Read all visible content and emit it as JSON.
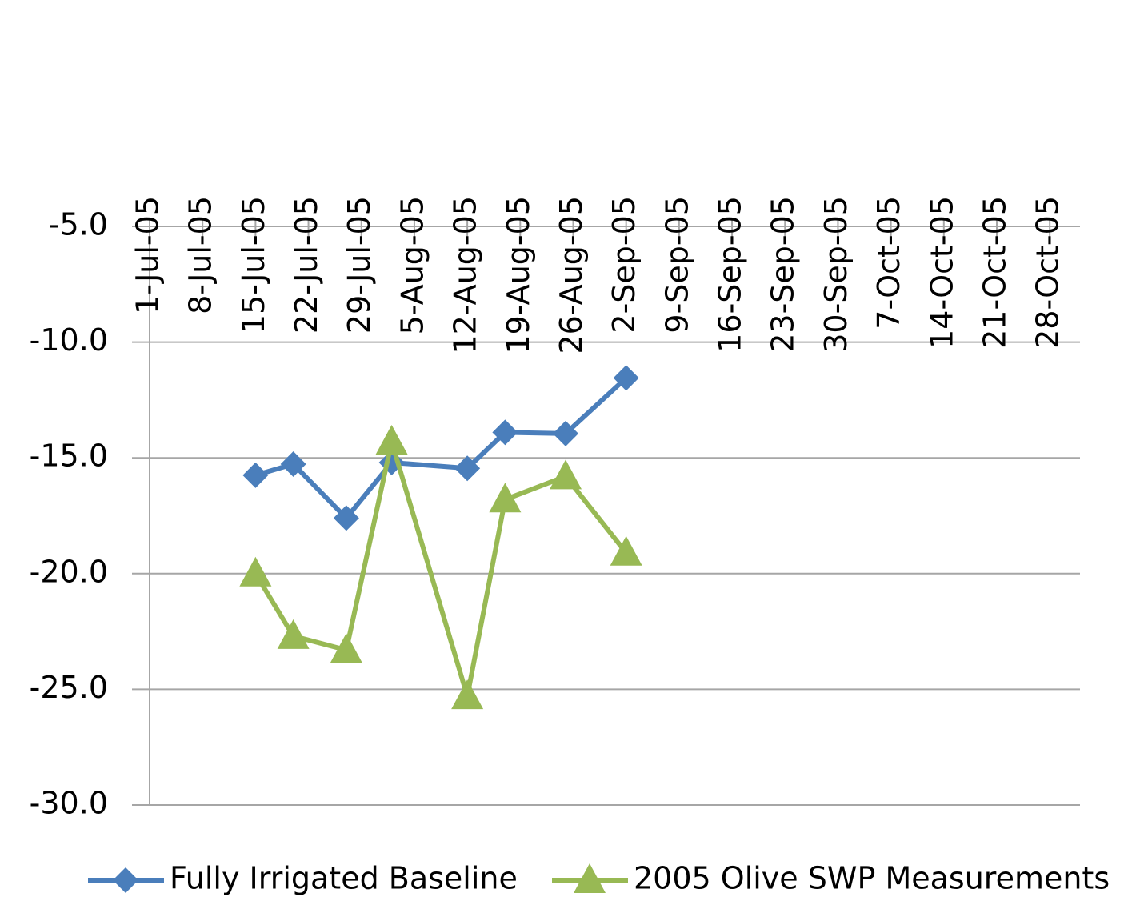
{
  "chart_data": {
    "type": "line",
    "x": [
      "2005-07-15",
      "2005-07-20",
      "2005-07-27",
      "2005-08-02",
      "2005-08-12",
      "2005-08-17",
      "2005-08-25",
      "2005-09-02"
    ],
    "series": [
      {
        "name": "Fully Irrigated Baseline",
        "color": "#4a7ebb",
        "marker": "diamond",
        "values": [
          -15.75,
          -15.27,
          -17.6,
          -15.2,
          -15.45,
          -13.9,
          -13.95,
          -11.55
        ]
      },
      {
        "name": "2005 Olive SWP Measurements",
        "color": "#98b954",
        "marker": "triangle",
        "values": [
          -20.0,
          -22.7,
          -23.3,
          -14.3,
          -25.3,
          -16.8,
          -15.8,
          -19.1
        ]
      }
    ],
    "xlim": [
      "2005-07-01",
      "2005-11-01"
    ],
    "xticks": [
      {
        "value": "2005-07-01",
        "label": "1-Jul-05"
      },
      {
        "value": "2005-07-08",
        "label": "8-Jul-05"
      },
      {
        "value": "2005-07-15",
        "label": "15-Jul-05"
      },
      {
        "value": "2005-07-22",
        "label": "22-Jul-05"
      },
      {
        "value": "2005-07-29",
        "label": "29-Jul-05"
      },
      {
        "value": "2005-08-05",
        "label": "5-Aug-05"
      },
      {
        "value": "2005-08-12",
        "label": "12-Aug-05"
      },
      {
        "value": "2005-08-19",
        "label": "19-Aug-05"
      },
      {
        "value": "2005-08-26",
        "label": "26-Aug-05"
      },
      {
        "value": "2005-09-02",
        "label": "2-Sep-05"
      },
      {
        "value": "2005-09-09",
        "label": "9-Sep-05"
      },
      {
        "value": "2005-09-16",
        "label": "16-Sep-05"
      },
      {
        "value": "2005-09-23",
        "label": "23-Sep-05"
      },
      {
        "value": "2005-09-30",
        "label": "30-Sep-05"
      },
      {
        "value": "2005-10-07",
        "label": "7-Oct-05"
      },
      {
        "value": "2005-10-14",
        "label": "14-Oct-05"
      },
      {
        "value": "2005-10-21",
        "label": "21-Oct-05"
      },
      {
        "value": "2005-10-28",
        "label": "28-Oct-05"
      }
    ],
    "ylim": [
      -30,
      -5
    ],
    "yticks": [
      {
        "value": -5,
        "label": "-5.0"
      },
      {
        "value": -10,
        "label": "-10.0"
      },
      {
        "value": -15,
        "label": "-15.0"
      },
      {
        "value": -20,
        "label": "-20.0"
      },
      {
        "value": -25,
        "label": "-25.0"
      },
      {
        "value": -30,
        "label": "-30.0"
      }
    ],
    "grid": true,
    "legend": "bottom"
  }
}
